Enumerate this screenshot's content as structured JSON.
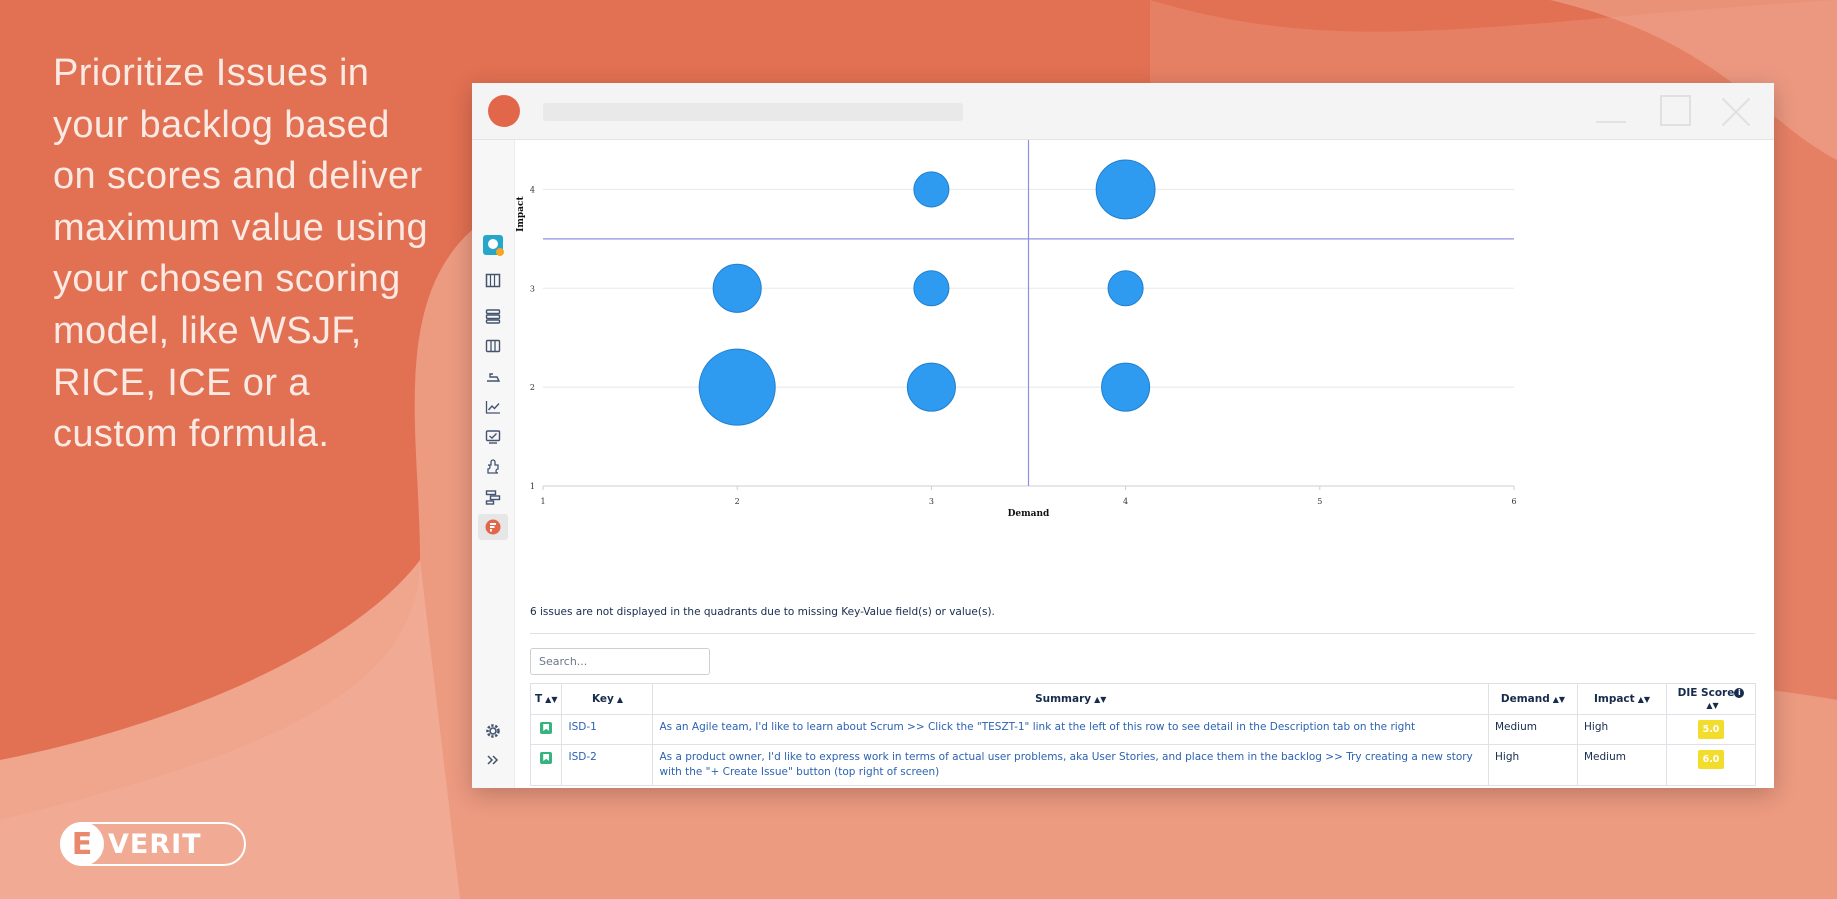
{
  "headline": "Prioritize Issues in your backlog based on scores and deliver maximum value using your chosen scoring model, like WSJF, RICE, ICE or a custom formula.",
  "logo": {
    "mark": "E",
    "text": "VERIT"
  },
  "colors": {
    "background": "#e27052",
    "bubble": "#2f9bf0",
    "quadrant_line": "#8f8fe0",
    "badge": "#f2dd2d"
  },
  "sidebar_icons": [
    "app-logo-icon",
    "board-icon",
    "backlog-icon",
    "columns-icon",
    "releases-icon",
    "reports-icon",
    "dashboard-icon",
    "addons-icon",
    "roadmap-icon",
    "prioritization-icon",
    "settings-icon",
    "expand-icon"
  ],
  "chart_data": {
    "type": "scatter",
    "subtype": "bubble",
    "xlabel": "Demand",
    "ylabel": "Impact",
    "xlim": [
      1,
      6
    ],
    "ylim": [
      1,
      4.5
    ],
    "xticks": [
      "1",
      "2",
      "3",
      "4",
      "5",
      "6"
    ],
    "yticks": [
      "1",
      "2",
      "3",
      "4"
    ],
    "quadrant_lines": {
      "x": 3.5,
      "y": 3.5
    },
    "grid": "horizontal",
    "points": [
      {
        "x": 2,
        "y": 2,
        "size": 4
      },
      {
        "x": 2,
        "y": 3,
        "size": 1.6
      },
      {
        "x": 3,
        "y": 2,
        "size": 1.6
      },
      {
        "x": 3,
        "y": 3,
        "size": 0.85
      },
      {
        "x": 3,
        "y": 4,
        "size": 0.85
      },
      {
        "x": 4,
        "y": 2,
        "size": 1.6
      },
      {
        "x": 4,
        "y": 3,
        "size": 0.85
      },
      {
        "x": 4,
        "y": 4,
        "size": 2.4
      }
    ]
  },
  "note": "6 issues are not displayed in the quadrants due to missing Key-Value field(s) or value(s).",
  "search": {
    "placeholder": "Search..."
  },
  "table": {
    "headers": {
      "type": "T",
      "key": "Key",
      "summary": "Summary",
      "demand": "Demand",
      "impact": "Impact",
      "score": "DIE Score"
    },
    "sort_both": "▲▼",
    "sort_up": "▲",
    "info": "i",
    "rows": [
      {
        "key": "ISD-1",
        "summary": "As an Agile team, I'd like to learn about Scrum >> Click the \"TESZT-1\" link at the left of this row to see detail in the Description tab on the right",
        "demand": "Medium",
        "impact": "High",
        "score": "5.0"
      },
      {
        "key": "ISD-2",
        "summary": "As a product owner, I'd like to express work in terms of actual user problems, aka User Stories, and place them in the backlog >> Try creating a new story with the \"+ Create Issue\" button (top right of screen)",
        "demand": "High",
        "impact": "Medium",
        "score": "6.0"
      }
    ]
  }
}
